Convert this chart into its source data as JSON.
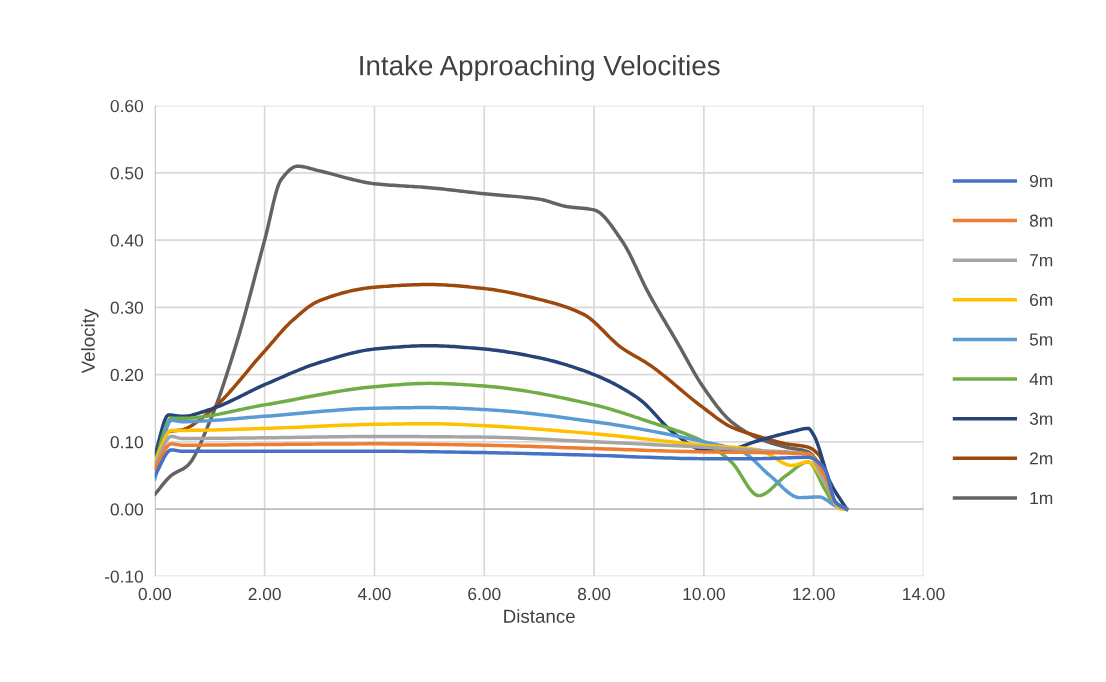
{
  "chart_data": {
    "type": "line",
    "title": "Intake Approaching Velocities",
    "xlabel": "Distance",
    "ylabel": "Velocity",
    "xlim": [
      0,
      14
    ],
    "xticks": [
      {
        "value": 0,
        "label": "0.00"
      },
      {
        "value": 2,
        "label": "2.00"
      },
      {
        "value": 4,
        "label": "4.00"
      },
      {
        "value": 6,
        "label": "6.00"
      },
      {
        "value": 8,
        "label": "8.00"
      },
      {
        "value": 10,
        "label": "10.00"
      },
      {
        "value": 12,
        "label": "12.00"
      },
      {
        "value": 14,
        "label": "14.00"
      }
    ],
    "ylim": [
      -0.1,
      0.6
    ],
    "yticks": [
      {
        "value": -0.1,
        "label": "-0.10"
      },
      {
        "value": 0,
        "label": "0.00"
      },
      {
        "value": 0.1,
        "label": "0.10"
      },
      {
        "value": 0.2,
        "label": "0.20"
      },
      {
        "value": 0.3,
        "label": "0.30"
      },
      {
        "value": 0.4,
        "label": "0.40"
      },
      {
        "value": 0.5,
        "label": "0.50"
      },
      {
        "value": 0.6,
        "label": "0.60"
      }
    ],
    "grid": true,
    "legend": "right",
    "marker": "none",
    "line_style": "solid",
    "series": [
      {
        "name": "9m",
        "color": "#4472c4",
        "x": [
          0,
          0.3,
          0.5,
          2,
          4,
          6,
          8,
          10,
          11,
          11.9,
          12.2,
          12.4,
          12.6
        ],
        "values": [
          0.05,
          0.088,
          0.086,
          0.086,
          0.086,
          0.084,
          0.08,
          0.075,
          0.075,
          0.077,
          0.06,
          0.01,
          0
        ]
      },
      {
        "name": "8m",
        "color": "#ed7d31",
        "x": [
          0,
          0.3,
          0.5,
          2,
          4,
          6,
          8,
          10,
          11,
          11.9,
          12.2,
          12.4,
          12.6
        ],
        "values": [
          0.06,
          0.097,
          0.095,
          0.096,
          0.097,
          0.095,
          0.09,
          0.085,
          0.084,
          0.082,
          0.05,
          0.01,
          0
        ]
      },
      {
        "name": "7m",
        "color": "#a5a5a5",
        "x": [
          0,
          0.3,
          0.5,
          2,
          4,
          6,
          8,
          10,
          11,
          11.9,
          12.2,
          12.5,
          12.6
        ],
        "values": [
          0.065,
          0.108,
          0.105,
          0.106,
          0.108,
          0.107,
          0.1,
          0.092,
          0.087,
          0.082,
          0.04,
          0.002,
          0
        ]
      },
      {
        "name": "6m",
        "color": "#ffc000",
        "x": [
          0,
          0.3,
          0.5,
          2,
          4,
          5,
          6,
          8,
          10,
          11,
          11.6,
          11.9,
          12.2,
          12.5,
          12.6
        ],
        "values": [
          0.07,
          0.117,
          0.117,
          0.12,
          0.126,
          0.127,
          0.124,
          0.112,
          0.095,
          0.088,
          0.065,
          0.07,
          0.04,
          0,
          0
        ]
      },
      {
        "name": "5m",
        "color": "#5b9bd5",
        "x": [
          0,
          0.3,
          0.5,
          2,
          4,
          5,
          6,
          8,
          10,
          10.7,
          11.2,
          11.75,
          12.1,
          12.4,
          12.6
        ],
        "values": [
          0.045,
          0.132,
          0.13,
          0.138,
          0.15,
          0.151,
          0.148,
          0.13,
          0.1,
          0.085,
          0.05,
          0.017,
          0.018,
          0.005,
          0
        ]
      },
      {
        "name": "4m",
        "color": "#70ad47",
        "x": [
          0,
          0.3,
          0.5,
          2,
          4,
          5,
          6,
          8,
          9,
          10,
          10.5,
          11,
          11.5,
          11.9,
          12.2,
          12.4,
          12.6
        ],
        "values": [
          0.07,
          0.135,
          0.135,
          0.155,
          0.182,
          0.187,
          0.183,
          0.155,
          0.13,
          0.1,
          0.07,
          0.02,
          0.05,
          0.07,
          0.03,
          0.005,
          0
        ]
      },
      {
        "name": "3m",
        "color": "#264478",
        "x": [
          0,
          0.25,
          0.5,
          1,
          2,
          3,
          4,
          5,
          6,
          7,
          8,
          8.8,
          9.5,
          10,
          10.4,
          11,
          11.6,
          11.9,
          12,
          12.3,
          12.6
        ],
        "values": [
          0.08,
          0.14,
          0.138,
          0.148,
          0.185,
          0.218,
          0.238,
          0.243,
          0.238,
          0.225,
          0.2,
          0.165,
          0.11,
          0.088,
          0.088,
          0.102,
          0.115,
          0.12,
          0.11,
          0.04,
          0
        ]
      },
      {
        "name": "2m",
        "color": "#9e480e",
        "x": [
          0,
          0.25,
          0.5,
          1,
          2,
          2.5,
          3,
          4,
          5,
          6,
          7,
          7.8,
          8.5,
          9,
          10,
          10.5,
          11,
          11.5,
          11.9,
          12.1,
          12.4,
          12.6
        ],
        "values": [
          0.06,
          0.115,
          0.118,
          0.145,
          0.235,
          0.28,
          0.31,
          0.33,
          0.334,
          0.328,
          0.312,
          0.29,
          0.24,
          0.215,
          0.15,
          0.122,
          0.108,
          0.097,
          0.092,
          0.08,
          0.01,
          0
        ]
      },
      {
        "name": "1m",
        "color": "#636363",
        "x": [
          0,
          0.3,
          0.6,
          1,
          1.5,
          2,
          2.3,
          2.6,
          3,
          4,
          5,
          6,
          7,
          7.5,
          8,
          8.5,
          9,
          9.5,
          10,
          10.5,
          11,
          11.5,
          11.9,
          12.2,
          12.4,
          12.6
        ],
        "values": [
          0.022,
          0.05,
          0.065,
          0.13,
          0.25,
          0.4,
          0.49,
          0.51,
          0.503,
          0.484,
          0.478,
          0.469,
          0.461,
          0.45,
          0.445,
          0.4,
          0.32,
          0.25,
          0.18,
          0.13,
          0.105,
          0.092,
          0.085,
          0.05,
          0.005,
          0
        ]
      }
    ]
  }
}
